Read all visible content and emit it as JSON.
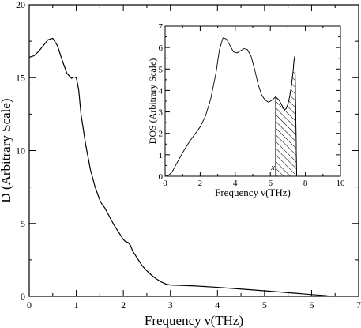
{
  "chart_data": [
    {
      "type": "line",
      "xlabel": "Frequency   ν(THz)",
      "ylabel": "D   (Arbitrary Scale)",
      "xlim": [
        0,
        7
      ],
      "ylim": [
        0,
        20
      ],
      "xticks": [
        "0",
        "1",
        "2",
        "3",
        "4",
        "5",
        "6",
        "7"
      ],
      "yticks": [
        "0",
        "5",
        "10",
        "15",
        "20"
      ],
      "grid": false,
      "series": [
        {
          "x": [
            0,
            0.1,
            0.2,
            0.3,
            0.4,
            0.5,
            0.6,
            0.7,
            0.8,
            0.9,
            0.95,
            1.0,
            1.05,
            1.1,
            1.2,
            1.3,
            1.4,
            1.5,
            1.55,
            1.6,
            1.65,
            1.7,
            1.8,
            1.9,
            2.0,
            2.05,
            2.1,
            2.15,
            2.2,
            2.3,
            2.4,
            2.5,
            2.6,
            2.7,
            2.8,
            2.9,
            3.0,
            3.5,
            4.0,
            4.5,
            5.0,
            5.5,
            6.0,
            6.3,
            6.4
          ],
          "y": [
            16.4,
            16.5,
            16.8,
            17.2,
            17.6,
            17.7,
            17.2,
            16.2,
            15.3,
            14.95,
            15.05,
            15.0,
            14.2,
            12.5,
            10.4,
            8.7,
            7.5,
            6.6,
            6.3,
            6.1,
            5.8,
            5.5,
            4.9,
            4.4,
            3.9,
            3.75,
            3.7,
            3.5,
            3.1,
            2.6,
            2.1,
            1.75,
            1.45,
            1.2,
            1.0,
            0.85,
            0.78,
            0.72,
            0.62,
            0.5,
            0.38,
            0.25,
            0.12,
            0.05,
            0
          ]
        }
      ]
    },
    {
      "type": "line",
      "xlabel": "Frequency  ν(THz)",
      "ylabel": "DOS (Arbitrary Scale)",
      "xlim": [
        0,
        10
      ],
      "ylim": [
        0,
        7
      ],
      "xticks": [
        "0",
        "2",
        "4",
        "6",
        "8",
        "10"
      ],
      "yticks": [
        "0",
        "1",
        "2",
        "3",
        "4",
        "5",
        "6",
        "7"
      ],
      "grid": false,
      "annotation": "x",
      "annotation_at": [
        6.15,
        0.3
      ],
      "hatched_range": [
        6.3,
        7.5
      ],
      "series": [
        {
          "x": [
            0,
            0.2,
            0.4,
            0.6,
            0.8,
            1.0,
            1.3,
            1.6,
            2.0,
            2.3,
            2.6,
            2.9,
            3.1,
            3.3,
            3.5,
            3.7,
            3.9,
            4.1,
            4.3,
            4.5,
            4.7,
            4.9,
            5.1,
            5.3,
            5.5,
            5.7,
            5.9,
            6.1,
            6.3,
            6.5,
            6.7,
            6.8,
            6.9,
            7.0,
            7.1,
            7.2,
            7.3,
            7.35,
            7.4,
            7.45,
            7.5
          ],
          "y": [
            0,
            0.05,
            0.2,
            0.5,
            0.8,
            1.1,
            1.5,
            1.85,
            2.3,
            2.8,
            3.6,
            4.8,
            5.9,
            6.45,
            6.4,
            6.1,
            5.8,
            5.75,
            5.85,
            5.95,
            5.9,
            5.6,
            5.0,
            4.3,
            3.8,
            3.55,
            3.45,
            3.55,
            3.7,
            3.55,
            3.25,
            3.1,
            3.15,
            3.35,
            3.7,
            4.2,
            4.9,
            5.4,
            5.6,
            3.0,
            0
          ]
        }
      ]
    }
  ]
}
